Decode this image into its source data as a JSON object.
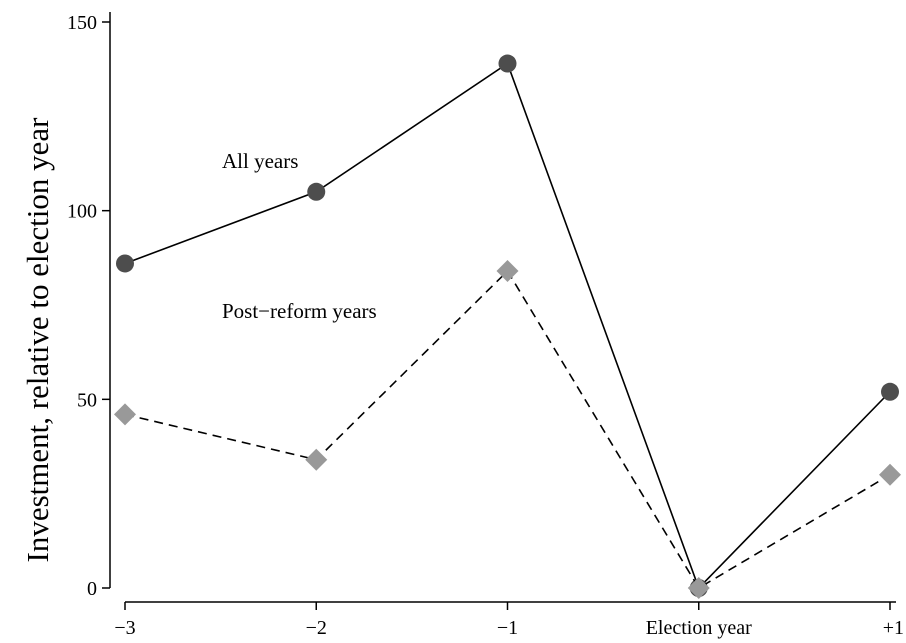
{
  "chart_data": {
    "type": "line",
    "title": "",
    "xlabel": "",
    "ylabel": "Investment, relative to election year",
    "x": [
      -3,
      -2,
      -1,
      0,
      1
    ],
    "x_tick_labels": [
      "−3",
      "−2",
      "−1",
      "Election year",
      "+1"
    ],
    "ylim": [
      0,
      150
    ],
    "y_ticks": [
      0,
      50,
      100,
      150
    ],
    "y_tick_labels": [
      "0",
      "50",
      "100",
      "150"
    ],
    "grid": false,
    "legend": "none",
    "series": [
      {
        "name": "All years",
        "values": [
          86,
          105,
          139,
          0,
          52
        ],
        "line_style": "solid",
        "marker": "circle",
        "color": "#4d4d4d",
        "line_color": "#000000"
      },
      {
        "name": "Post−reform years",
        "values": [
          46,
          34,
          84,
          0,
          30
        ],
        "line_style": "dashed",
        "marker": "diamond",
        "color": "#999999",
        "line_color": "#000000"
      }
    ],
    "annotations": [
      {
        "text": "All years",
        "series_index": 0
      },
      {
        "text": "Post−reform years",
        "series_index": 1
      }
    ]
  }
}
